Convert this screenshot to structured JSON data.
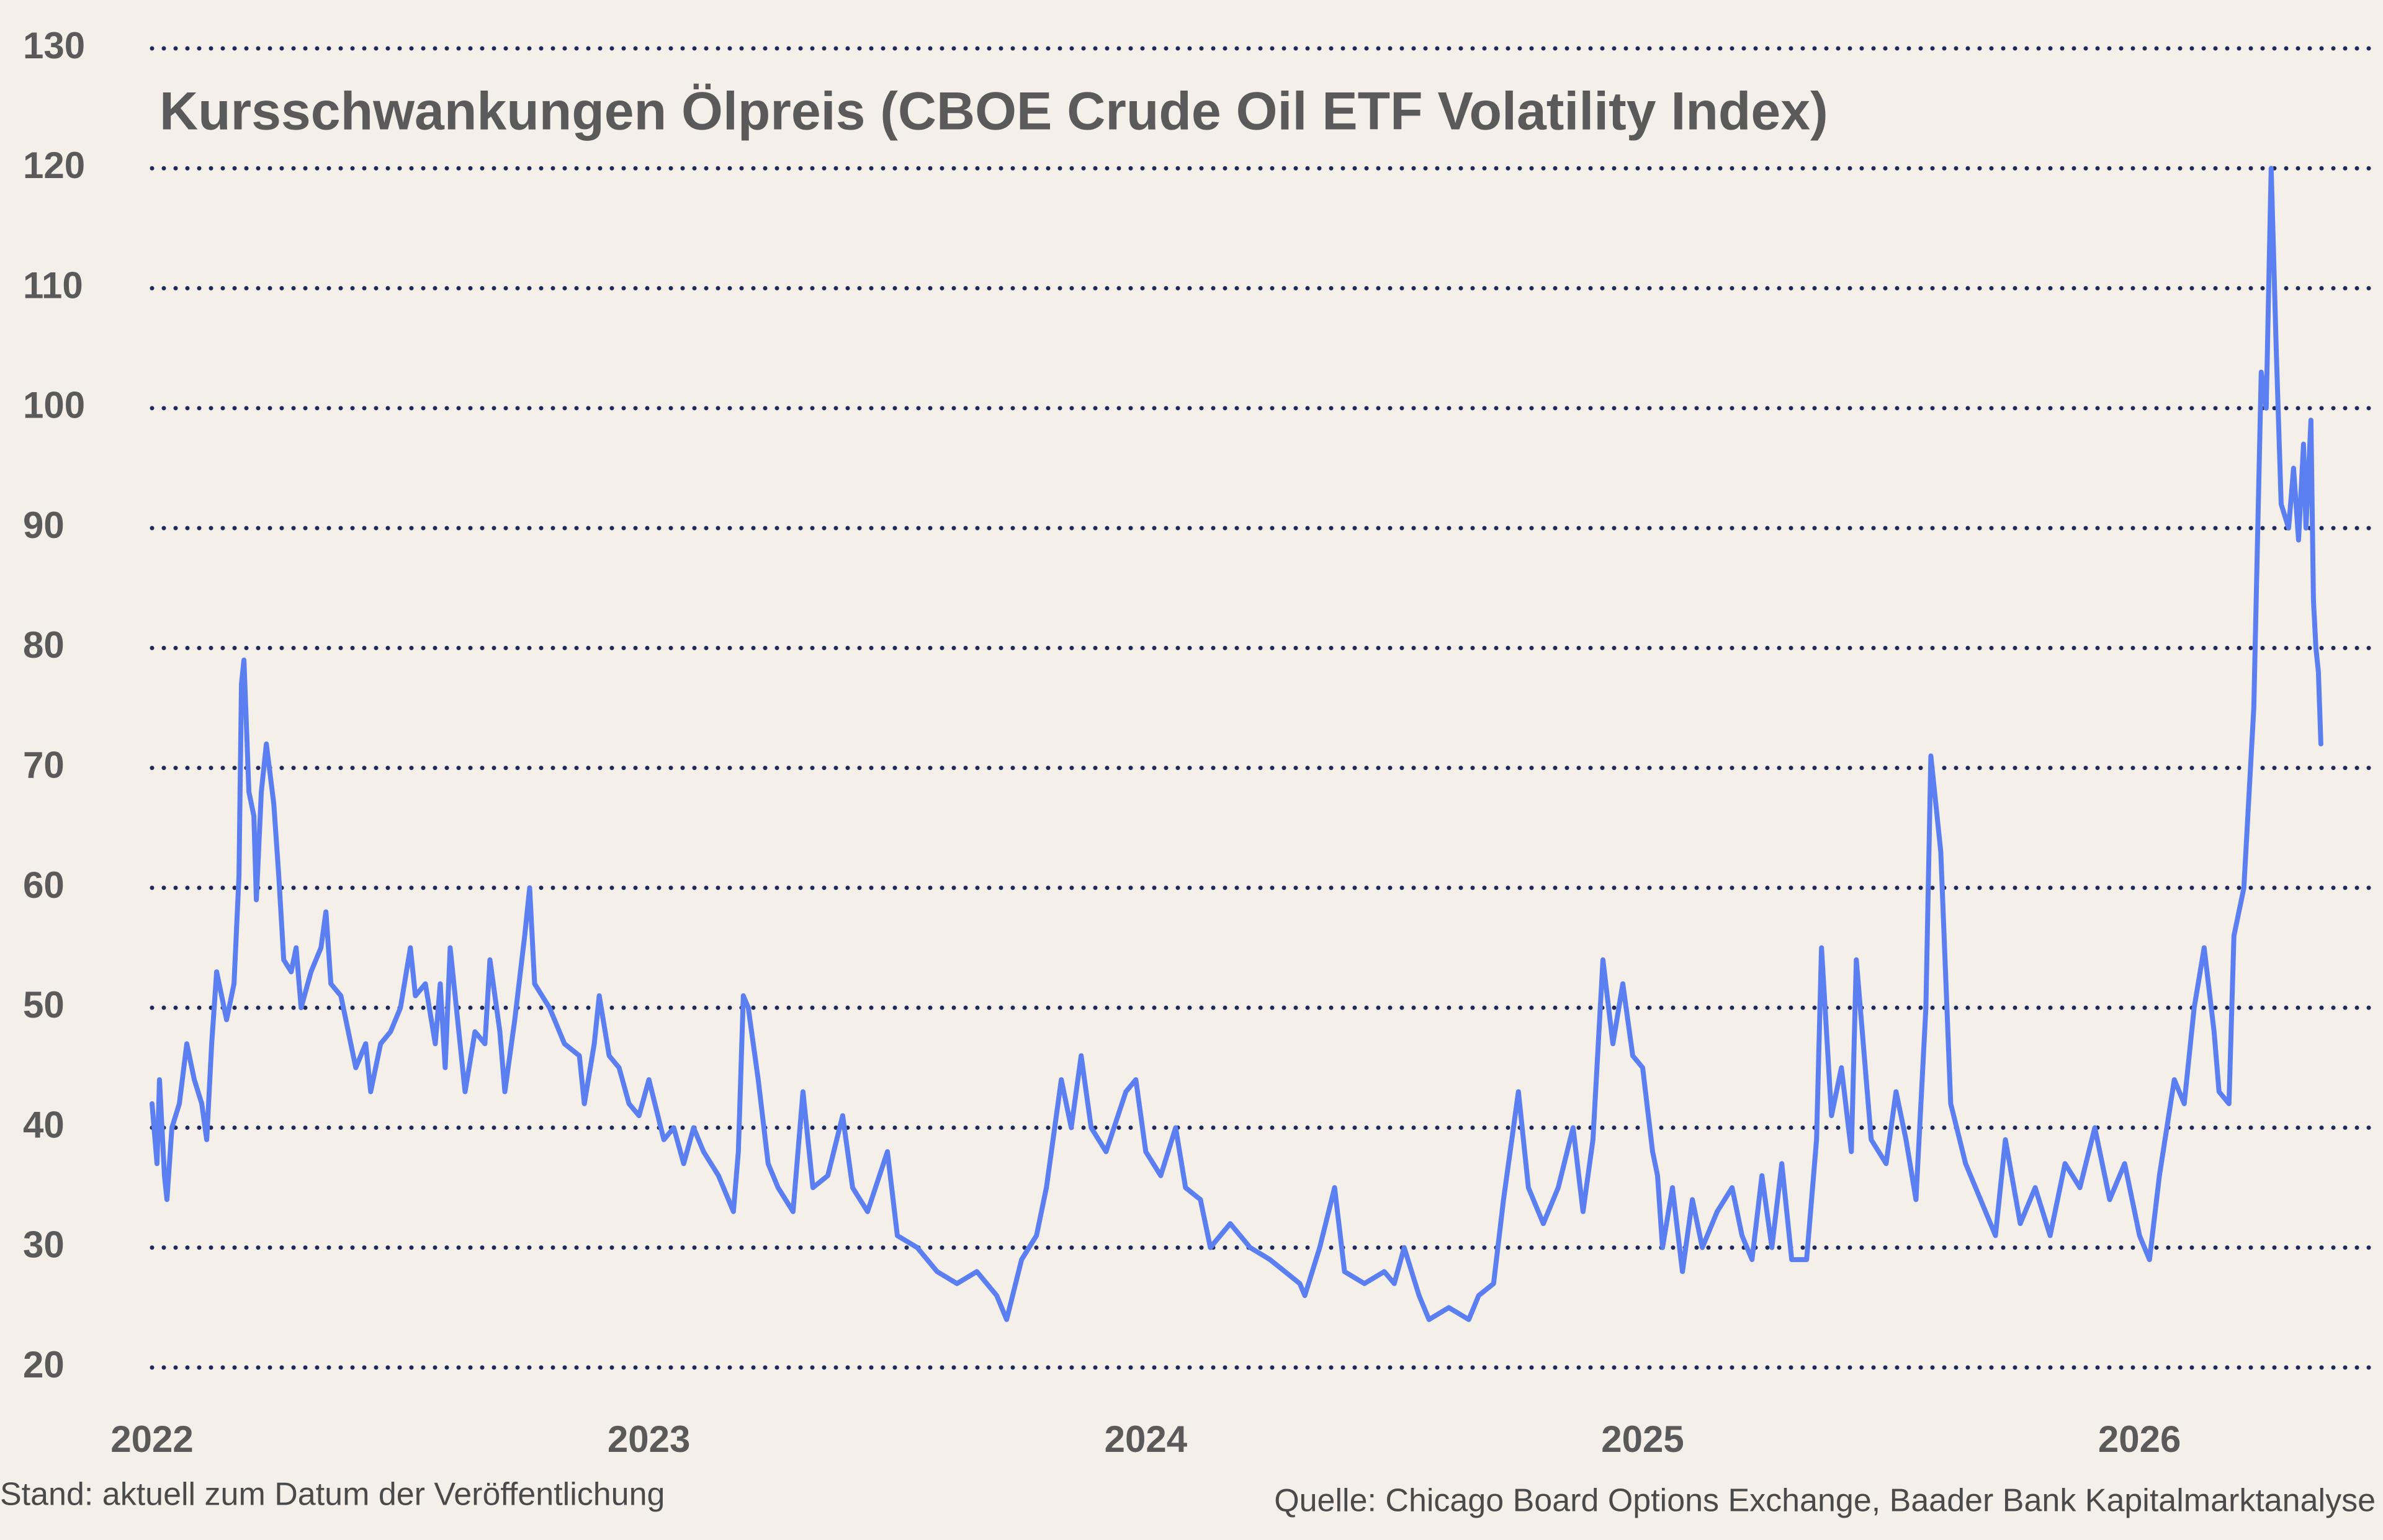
{
  "chart_data": {
    "type": "line",
    "title": "Kursschwankungen Ölpreis (CBOE Crude Oil ETF Volatility Index)",
    "footnote": "Stand: aktuell zum Datum der Veröffentlichung",
    "source": "Quelle: Chicago Board Options Exchange, Baader Bank Kapitalmarktanalyse",
    "color": "#5b7ff0",
    "grid": true,
    "xlim": [
      2022,
      2026.49
    ],
    "ylim": [
      20,
      130
    ],
    "xticks": [
      2022,
      2023,
      2024,
      2025,
      2026
    ],
    "yticks": [
      20,
      30,
      40,
      50,
      60,
      70,
      80,
      90,
      100,
      110,
      120,
      130
    ],
    "x": [
      2022.0,
      2022.01,
      2022.015,
      2022.025,
      2022.03,
      2022.04,
      2022.055,
      2022.07,
      2022.085,
      2022.1,
      2022.11,
      2022.12,
      2022.13,
      2022.15,
      2022.165,
      2022.175,
      2022.18,
      2022.185,
      2022.195,
      2022.205,
      2022.21,
      2022.22,
      2022.23,
      2022.245,
      2022.255,
      2022.265,
      2022.28,
      2022.29,
      2022.3,
      2022.32,
      2022.34,
      2022.35,
      2022.36,
      2022.38,
      2022.4,
      2022.41,
      2022.43,
      2022.44,
      2022.46,
      2022.48,
      2022.5,
      2022.52,
      2022.53,
      2022.55,
      2022.57,
      2022.58,
      2022.59,
      2022.6,
      2022.62,
      2022.63,
      2022.65,
      2022.67,
      2022.68,
      2022.7,
      2022.71,
      2022.73,
      2022.75,
      2022.76,
      2022.77,
      2022.8,
      2022.83,
      2022.86,
      2022.87,
      2022.89,
      2022.9,
      2022.92,
      2022.94,
      2022.96,
      2022.98,
      2023.0,
      2023.03,
      2023.05,
      2023.07,
      2023.09,
      2023.11,
      2023.14,
      2023.17,
      2023.18,
      2023.19,
      2023.2,
      2023.22,
      2023.24,
      2023.26,
      2023.29,
      2023.3,
      2023.31,
      2023.33,
      2023.36,
      2023.39,
      2023.41,
      2023.44,
      2023.48,
      2023.5,
      2023.54,
      2023.58,
      2023.62,
      2023.66,
      2023.7,
      2023.72,
      2023.75,
      2023.78,
      2023.8,
      2023.83,
      2023.85,
      2023.87,
      2023.89,
      2023.92,
      2023.96,
      2023.98,
      2024.0,
      2024.03,
      2024.06,
      2024.08,
      2024.11,
      2024.13,
      2024.17,
      2024.21,
      2024.25,
      2024.28,
      2024.31,
      2024.32,
      2024.35,
      2024.38,
      2024.4,
      2024.44,
      2024.48,
      2024.5,
      2024.52,
      2024.55,
      2024.57,
      2024.61,
      2024.65,
      2024.67,
      2024.7,
      2024.72,
      2024.74,
      2024.75,
      2024.77,
      2024.8,
      2024.83,
      2024.86,
      2024.88,
      2024.9,
      2024.92,
      2024.94,
      2024.96,
      2024.98,
      2025.0,
      2025.02,
      2025.03,
      2025.04,
      2025.06,
      2025.08,
      2025.1,
      2025.12,
      2025.15,
      2025.18,
      2025.2,
      2025.22,
      2025.24,
      2025.26,
      2025.28,
      2025.3,
      2025.33,
      2025.35,
      2025.36,
      2025.38,
      2025.4,
      2025.42,
      2025.43,
      2025.46,
      2025.49,
      2025.51,
      2025.53,
      2025.55,
      2025.57,
      2025.58,
      2025.6,
      2025.62,
      2025.65,
      2025.68,
      2025.71,
      2025.73,
      2025.76,
      2025.79,
      2025.82,
      2025.85,
      2025.88,
      2025.91,
      2025.94,
      2025.97,
      2026.0,
      2026.02,
      2026.04,
      2026.07,
      2026.09,
      2026.11,
      2026.13,
      2026.15,
      2026.16,
      2026.18,
      2026.19,
      2026.21,
      2026.23,
      2026.245,
      2026.255,
      2026.265,
      2026.275,
      2026.285,
      2026.3,
      2026.31,
      2026.32,
      2026.33,
      2026.335,
      2026.345,
      2026.35,
      2026.355,
      2026.36,
      2026.365
    ],
    "values": [
      42,
      37,
      44,
      36,
      34,
      40,
      42,
      47,
      44,
      42,
      39,
      47,
      53,
      49,
      52,
      61,
      77,
      79,
      68,
      66,
      59,
      68,
      72,
      67,
      61,
      54,
      53,
      55,
      50,
      53,
      55,
      58,
      52,
      51,
      47,
      45,
      47,
      43,
      47,
      48,
      50,
      55,
      51,
      52,
      47,
      52,
      45,
      55,
      47,
      43,
      48,
      47,
      54,
      48,
      43,
      49,
      56,
      60,
      52,
      50,
      47,
      46,
      42,
      47,
      51,
      46,
      45,
      42,
      41,
      44,
      39,
      40,
      37,
      40,
      38,
      36,
      33,
      38,
      51,
      50,
      44,
      37,
      35,
      33,
      38,
      43,
      35,
      36,
      41,
      35,
      33,
      38,
      31,
      30,
      28,
      27,
      28,
      26,
      24,
      29,
      31,
      35,
      44,
      40,
      46,
      40,
      38,
      43,
      44,
      38,
      36,
      40,
      35,
      34,
      30,
      32,
      30,
      29,
      28,
      27,
      26,
      30,
      35,
      28,
      27,
      28,
      27,
      30,
      26,
      24,
      25,
      24,
      26,
      27,
      34,
      40,
      43,
      35,
      32,
      35,
      40,
      33,
      39,
      54,
      47,
      52,
      46,
      45,
      38,
      36,
      30,
      35,
      28,
      34,
      30,
      33,
      35,
      31,
      29,
      36,
      30,
      37,
      29,
      29,
      39,
      55,
      41,
      45,
      38,
      54,
      39,
      37,
      43,
      39,
      34,
      50,
      71,
      63,
      42,
      37,
      34,
      31,
      39,
      32,
      35,
      31,
      37,
      35,
      40,
      34,
      37,
      31,
      29,
      36,
      44,
      42,
      50,
      55,
      48,
      43,
      42,
      56,
      60,
      75,
      103,
      100,
      120,
      105,
      92,
      90,
      95,
      89,
      97,
      90,
      99,
      84,
      80,
      78,
      72
    ]
  }
}
